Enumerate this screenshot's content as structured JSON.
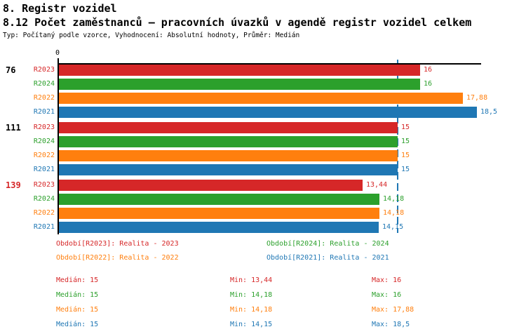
{
  "header": {
    "title1": "8. Registr vozidel",
    "title2": "8.12 Počet zaměstnanců – pracovních úvazků v agendě registr vozidel celkem",
    "meta": "Typ: Počítaný podle vzorce, Vyhodnocení: Absolutní hodnoty, Průměr: Medián"
  },
  "chart_data": {
    "type": "bar",
    "orientation": "horizontal",
    "title": "8.12 Počet zaměstnanců – pracovních úvazků v agendě registr vozidel celkem",
    "zero_label": "0",
    "value_axis_min": 0,
    "median_line_value": 15,
    "median_line_color": "#1f77b4",
    "axis_color": "#000000",
    "colors": {
      "R2023": "#d62728",
      "R2024": "#2ca02c",
      "R2022": "#ff7f0e",
      "R2021": "#1f77b4"
    },
    "groups": [
      {
        "label": "76",
        "label_color": "#000000",
        "bars": [
          {
            "name": "R2023",
            "value": 16,
            "value_label": "16"
          },
          {
            "name": "R2024",
            "value": 16,
            "value_label": "16"
          },
          {
            "name": "R2022",
            "value": 17.88,
            "value_label": "17,88"
          },
          {
            "name": "R2021",
            "value": 18.5,
            "value_label": "18,5"
          }
        ]
      },
      {
        "label": "111",
        "label_color": "#000000",
        "bars": [
          {
            "name": "R2023",
            "value": 15,
            "value_label": "15"
          },
          {
            "name": "R2024",
            "value": 15,
            "value_label": "15"
          },
          {
            "name": "R2022",
            "value": 15,
            "value_label": "15"
          },
          {
            "name": "R2021",
            "value": 15,
            "value_label": "15"
          }
        ]
      },
      {
        "label": "139",
        "label_color": "#d62728",
        "bars": [
          {
            "name": "R2023",
            "value": 13.44,
            "value_label": "13,44"
          },
          {
            "name": "R2024",
            "value": 14.18,
            "value_label": "14,18"
          },
          {
            "name": "R2022",
            "value": 14.18,
            "value_label": "14,18"
          },
          {
            "name": "R2021",
            "value": 14.15,
            "value_label": "14,15"
          }
        ]
      }
    ]
  },
  "legend": {
    "items": [
      {
        "text": "Období[R2023]: Realita - 2023",
        "color": "#d62728"
      },
      {
        "text": "Období[R2024]: Realita - 2024",
        "color": "#2ca02c"
      },
      {
        "text": "Období[R2022]: Realita - 2022",
        "color": "#ff7f0e"
      },
      {
        "text": "Období[R2021]: Realita - 2021",
        "color": "#1f77b4"
      }
    ]
  },
  "stats": {
    "rows": [
      {
        "color": "#d62728",
        "median": "Medián: 15",
        "min": "Min: 13,44",
        "max": "Max: 16"
      },
      {
        "color": "#2ca02c",
        "median": "Medián: 15",
        "min": "Min: 14,18",
        "max": "Max: 16"
      },
      {
        "color": "#ff7f0e",
        "median": "Medián: 15",
        "min": "Min: 14,18",
        "max": "Max: 17,88"
      },
      {
        "color": "#1f77b4",
        "median": "Medián: 15",
        "min": "Min: 14,15",
        "max": "Max: 18,5"
      }
    ]
  }
}
